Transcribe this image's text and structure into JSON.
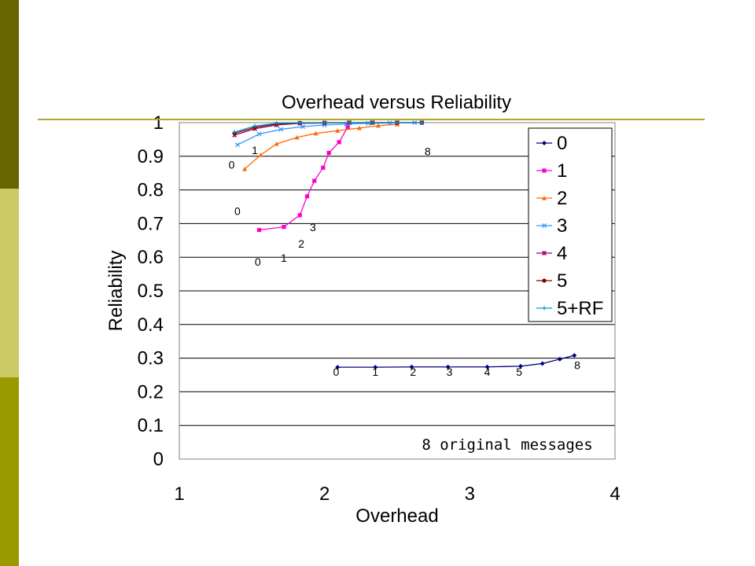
{
  "chart_data": {
    "type": "line",
    "title": "Overhead versus Reliability",
    "xlabel": "Overhead",
    "ylabel": "Reliability",
    "xlim": [
      1,
      4
    ],
    "ylim": [
      0,
      1
    ],
    "x_ticks": [
      "1",
      "2",
      "3",
      "4"
    ],
    "y_ticks": [
      "0",
      "0.1",
      "0.2",
      "0.3",
      "0.4",
      "0.5",
      "0.6",
      "0.7",
      "0.8",
      "0.9",
      "1"
    ],
    "grid": "horizontal",
    "legend_position": "right",
    "annotation": "8 original messages",
    "series": [
      {
        "name": "0",
        "color": "#000080",
        "marker": "diamond",
        "x": [
          2.09,
          2.35,
          2.6,
          2.85,
          3.12,
          3.35,
          3.5,
          3.62,
          3.72
        ],
        "y": [
          0.273,
          0.273,
          0.274,
          0.274,
          0.274,
          0.276,
          0.284,
          0.297,
          0.308
        ]
      },
      {
        "name": "1",
        "color": "#ff00cc",
        "marker": "square",
        "x": [
          1.55,
          1.72,
          1.83,
          1.88,
          1.93,
          1.99,
          2.03,
          2.1,
          2.16
        ],
        "y": [
          0.681,
          0.69,
          0.725,
          0.781,
          0.827,
          0.866,
          0.91,
          0.942,
          0.987
        ]
      },
      {
        "name": "2",
        "color": "#ff6600",
        "marker": "triangle",
        "x": [
          1.45,
          1.56,
          1.67,
          1.81,
          1.94,
          2.09,
          2.24,
          2.37,
          2.5
        ],
        "y": [
          0.862,
          0.904,
          0.937,
          0.956,
          0.968,
          0.976,
          0.984,
          0.991,
          0.995
        ]
      },
      {
        "name": "3",
        "color": "#3399ff",
        "marker": "x",
        "x": [
          1.4,
          1.55,
          1.7,
          1.85,
          2.0,
          2.15,
          2.3,
          2.45,
          2.62
        ],
        "y": [
          0.934,
          0.966,
          0.98,
          0.988,
          0.993,
          0.996,
          0.998,
          0.999,
          1.0
        ]
      },
      {
        "name": "4",
        "color": "#990066",
        "marker": "star",
        "x": [
          1.38,
          1.52,
          1.67,
          1.83,
          2.0,
          2.17,
          2.33,
          2.5,
          2.67
        ],
        "y": [
          0.963,
          0.982,
          0.993,
          0.998,
          0.999,
          1.0,
          1.0,
          1.0,
          1.0
        ]
      },
      {
        "name": "5",
        "color": "#800000",
        "marker": "circle",
        "x": [
          1.38,
          1.52,
          1.67,
          1.83,
          2.0,
          2.17,
          2.33,
          2.5,
          2.67
        ],
        "y": [
          0.968,
          0.986,
          0.996,
          0.999,
          1.0,
          1.0,
          1.0,
          1.0,
          1.0
        ]
      },
      {
        "name": "5+RF",
        "color": "#0099cc",
        "marker": "plus",
        "x": [
          1.38,
          1.52,
          1.67,
          1.83,
          2.0,
          2.17,
          2.33,
          2.5,
          2.67
        ],
        "y": [
          0.972,
          0.99,
          0.998,
          1.0,
          1.0,
          1.0,
          1.0,
          1.0,
          1.0
        ]
      }
    ],
    "point_labels": [
      {
        "text": "0",
        "x": 2.08,
        "y": 0.248
      },
      {
        "text": "1",
        "x": 2.35,
        "y": 0.248
      },
      {
        "text": "2",
        "x": 2.61,
        "y": 0.248
      },
      {
        "text": "3",
        "x": 2.86,
        "y": 0.248
      },
      {
        "text": "4",
        "x": 3.12,
        "y": 0.248
      },
      {
        "text": "5",
        "x": 3.34,
        "y": 0.248
      },
      {
        "text": "8",
        "x": 3.74,
        "y": 0.267
      },
      {
        "text": "0",
        "x": 1.54,
        "y": 0.575
      },
      {
        "text": "1",
        "x": 1.72,
        "y": 0.587
      },
      {
        "text": "2",
        "x": 1.84,
        "y": 0.628
      },
      {
        "text": "3",
        "x": 1.92,
        "y": 0.678
      },
      {
        "text": "0",
        "x": 1.4,
        "y": 0.725
      },
      {
        "text": "0",
        "x": 1.36,
        "y": 0.863
      },
      {
        "text": "1",
        "x": 1.52,
        "y": 0.907
      },
      {
        "text": "8",
        "x": 2.71,
        "y": 0.903
      }
    ]
  }
}
